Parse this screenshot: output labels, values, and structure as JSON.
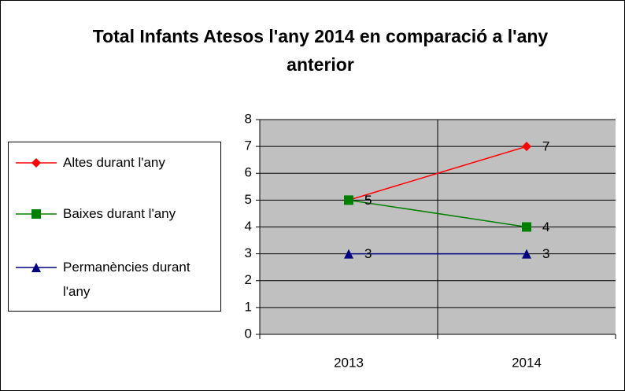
{
  "chart_data": {
    "type": "line",
    "title": "Total Infants Atesos l'any 2014 en comparació a l'any anterior",
    "categories": [
      "2013",
      "2014"
    ],
    "series": [
      {
        "name": "Altes durant l'any",
        "color": "#ff0000",
        "marker": "diamond",
        "values": [
          5,
          7
        ]
      },
      {
        "name": "Baixes durant l'any",
        "color": "#008000",
        "marker": "square",
        "values": [
          5,
          4
        ]
      },
      {
        "name": "Permanències durant l'any",
        "color": "#000080",
        "marker": "triangle",
        "values": [
          3,
          3
        ]
      }
    ],
    "ylim": [
      0,
      8
    ],
    "yticks": [
      0,
      1,
      2,
      3,
      4,
      5,
      6,
      7,
      8
    ],
    "grid": true,
    "legend": "left"
  }
}
